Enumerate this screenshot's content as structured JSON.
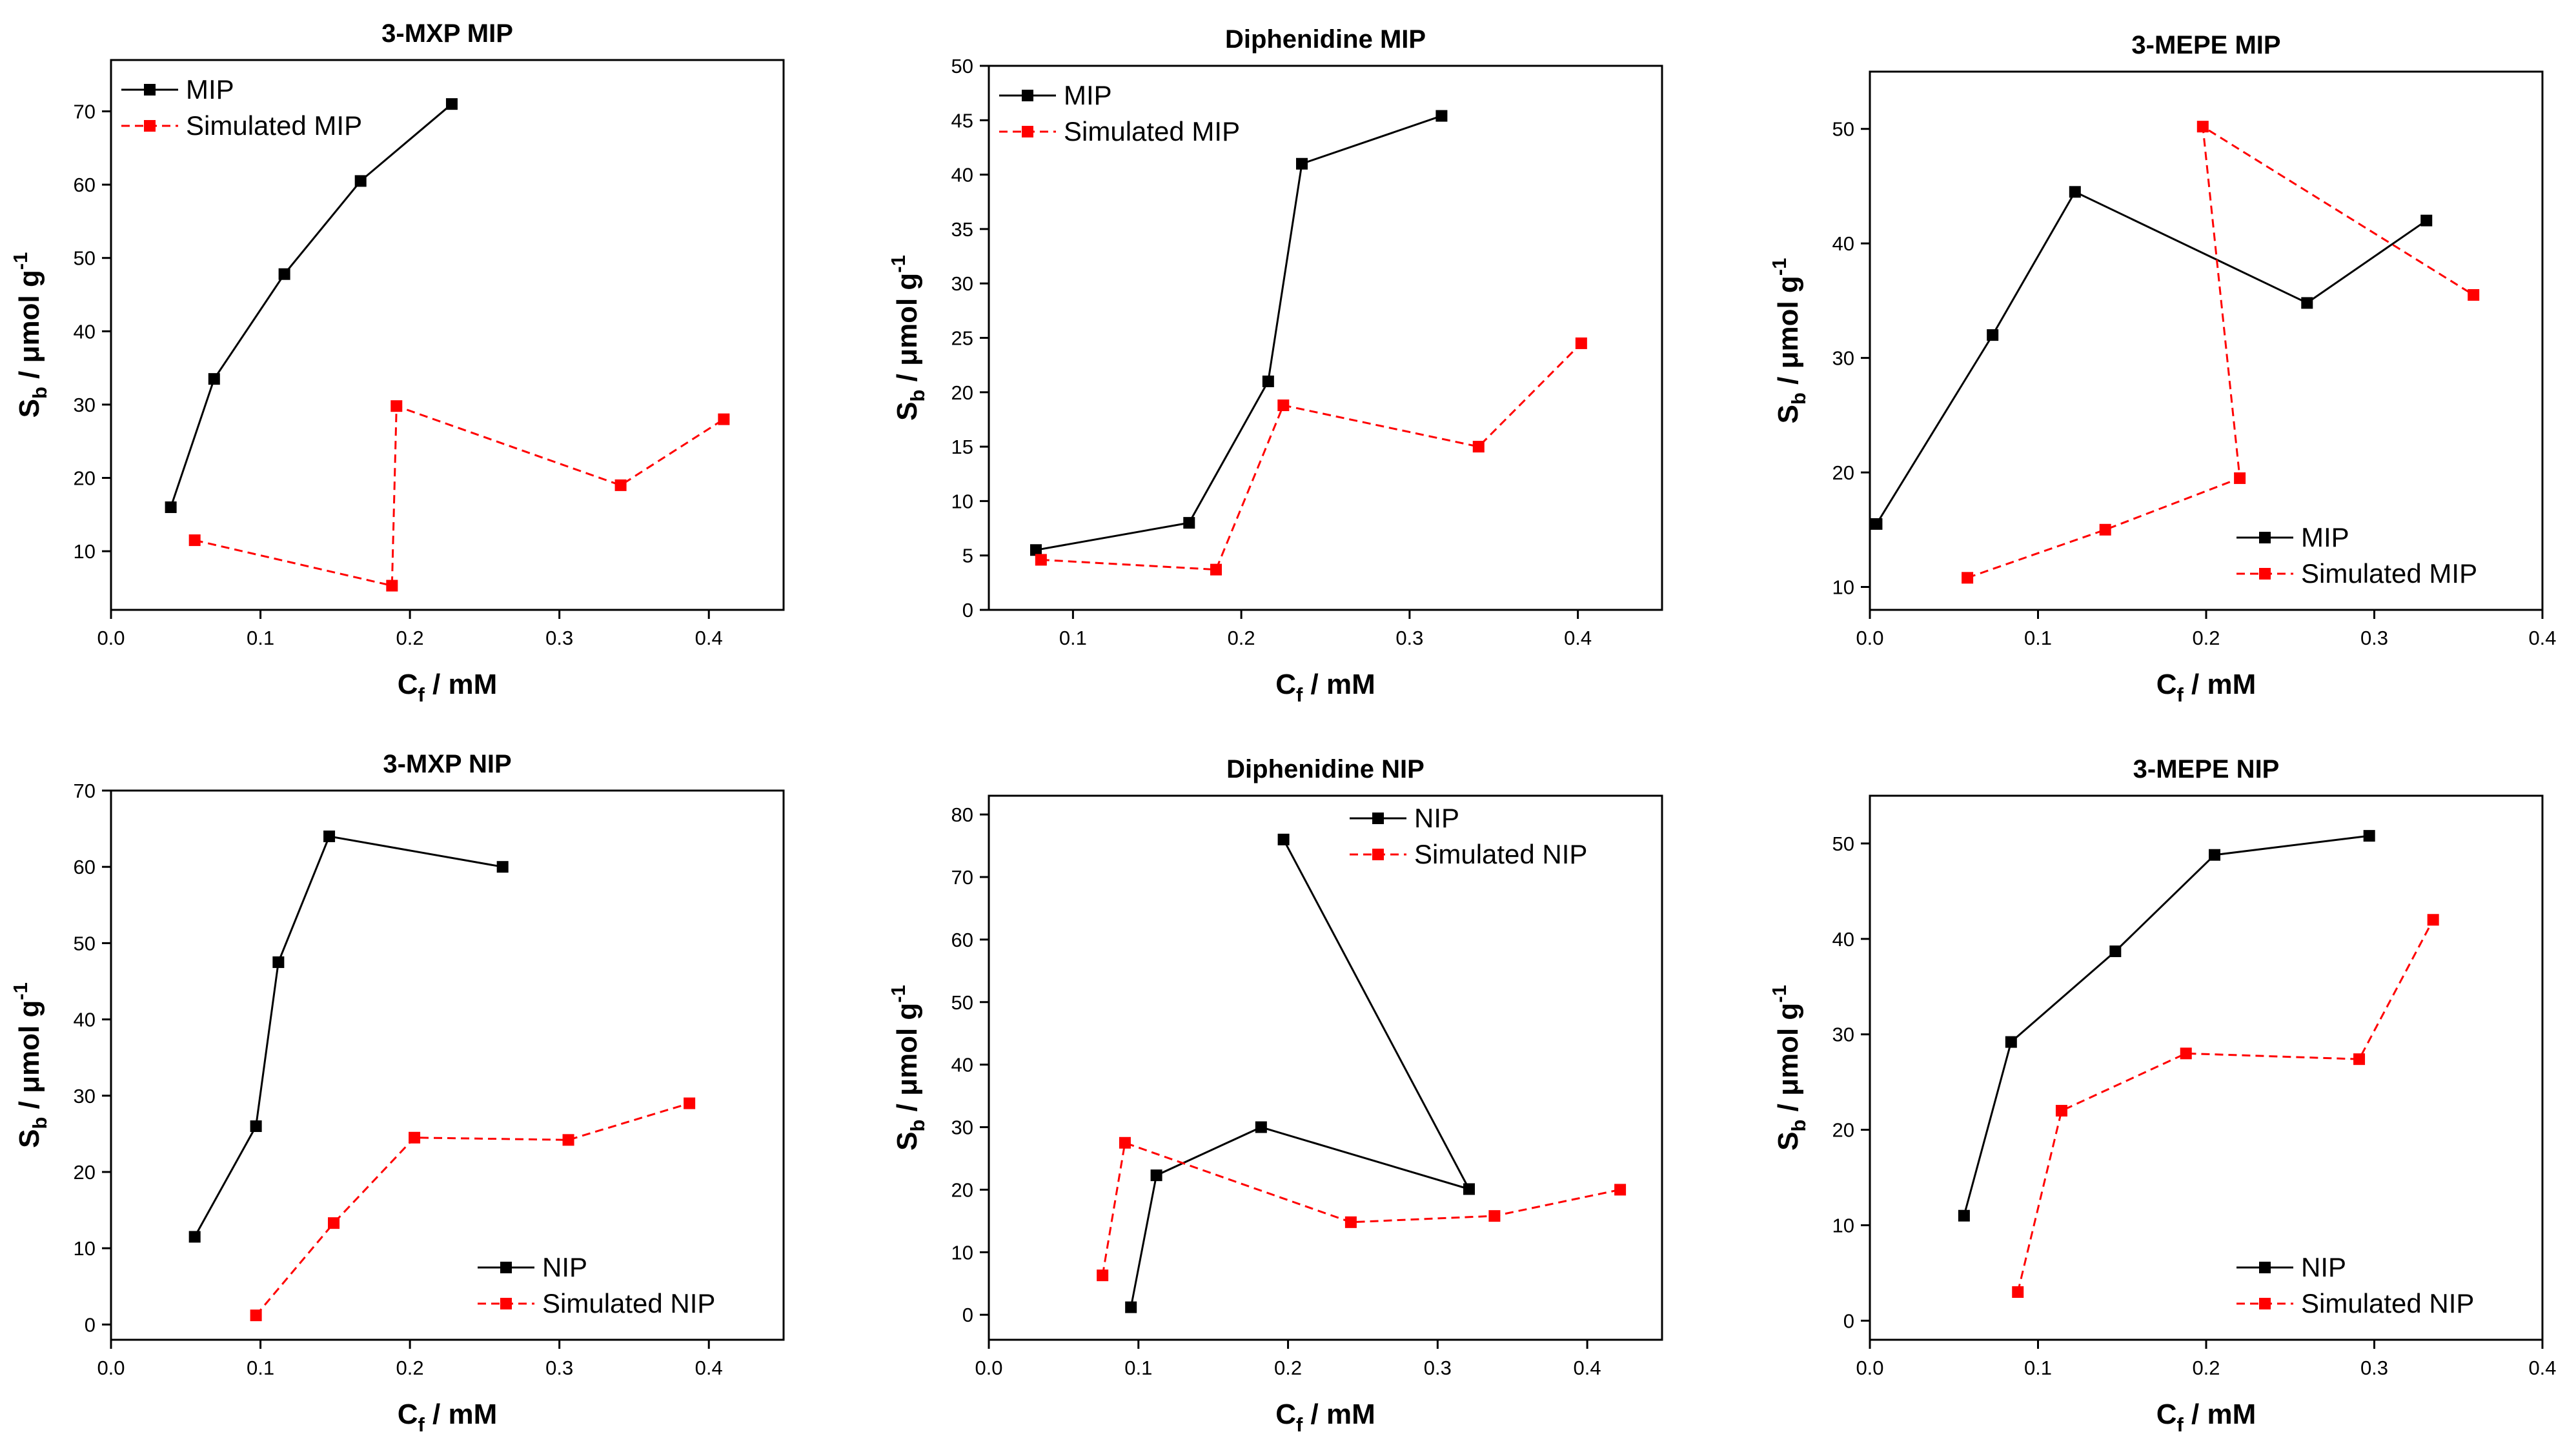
{
  "figure": {
    "background": "#ffffff",
    "axis_color": "#000000"
  },
  "chart_data": [
    {
      "type": "line",
      "title": "3-MXP MIP",
      "xlabel": {
        "main": "C",
        "sub": "f",
        "rest": " / mM"
      },
      "ylabel": {
        "main": "S",
        "sub": "b",
        "rest": " / μmol g",
        "sup": "-1"
      },
      "xlim": [
        0.0,
        0.45
      ],
      "ylim": [
        2,
        77
      ],
      "xticks": [
        0.0,
        0.1,
        0.2,
        0.3,
        0.4
      ],
      "xtick_labels": [
        "0.0",
        "0.1",
        "0.2",
        "0.3",
        "0.4"
      ],
      "yticks": [
        10,
        20,
        30,
        40,
        50,
        60,
        70
      ],
      "ytick_labels": [
        "10",
        "20",
        "30",
        "40",
        "50",
        "60",
        "70"
      ],
      "legend": {
        "position": "top-left"
      },
      "series": [
        {
          "name": "MIP",
          "color": "#000000",
          "dashed": false,
          "x": [
            0.04,
            0.069,
            0.116,
            0.167,
            0.228
          ],
          "y": [
            16.0,
            33.5,
            47.8,
            60.5,
            71.0
          ]
        },
        {
          "name": "Simulated MIP",
          "color": "#ff0000",
          "dashed": true,
          "x": [
            0.056,
            0.188,
            0.191,
            0.341,
            0.41
          ],
          "y": [
            11.5,
            5.3,
            29.8,
            19.0,
            28.0
          ]
        }
      ]
    },
    {
      "type": "line",
      "title": "Diphenidine MIP",
      "xlabel": {
        "main": "C",
        "sub": "f",
        "rest": " / mM"
      },
      "ylabel": {
        "main": "S",
        "sub": "b",
        "rest": " / μmol g",
        "sup": "-1"
      },
      "xlim": [
        0.05,
        0.45
      ],
      "ylim": [
        0,
        50
      ],
      "xticks": [
        0.1,
        0.2,
        0.3,
        0.4
      ],
      "xtick_labels": [
        "0.1",
        "0.2",
        "0.3",
        "0.4"
      ],
      "yticks": [
        0,
        5,
        10,
        15,
        20,
        25,
        30,
        35,
        40,
        45,
        50
      ],
      "ytick_labels": [
        "0",
        "5",
        "10",
        "15",
        "20",
        "25",
        "30",
        "35",
        "40",
        "45",
        "50"
      ],
      "legend": {
        "position": "top-left"
      },
      "series": [
        {
          "name": "MIP",
          "color": "#000000",
          "dashed": false,
          "x": [
            0.078,
            0.169,
            0.216,
            0.236,
            0.319
          ],
          "y": [
            5.5,
            8.0,
            21.0,
            41.0,
            45.4
          ]
        },
        {
          "name": "Simulated MIP",
          "color": "#ff0000",
          "dashed": true,
          "x": [
            0.081,
            0.185,
            0.225,
            0.341,
            0.402
          ],
          "y": [
            4.6,
            3.7,
            18.8,
            15.0,
            24.5
          ]
        }
      ]
    },
    {
      "type": "line",
      "title": "3-MEPE MIP",
      "xlabel": {
        "main": "C",
        "sub": "f",
        "rest": " / mM"
      },
      "ylabel": {
        "main": "S",
        "sub": "b",
        "rest": " / μmol g",
        "sup": "-1"
      },
      "xlim": [
        0.0,
        0.4
      ],
      "ylim": [
        8,
        55
      ],
      "xticks": [
        0.0,
        0.1,
        0.2,
        0.3,
        0.4
      ],
      "xtick_labels": [
        "0.0",
        "0.1",
        "0.2",
        "0.3",
        "0.4"
      ],
      "yticks": [
        10,
        20,
        30,
        40,
        50
      ],
      "ytick_labels": [
        "10",
        "20",
        "30",
        "40",
        "50"
      ],
      "legend": {
        "position": "bottom-right"
      },
      "series": [
        {
          "name": "MIP",
          "color": "#000000",
          "dashed": false,
          "x": [
            0.004,
            0.073,
            0.122,
            0.26,
            0.331
          ],
          "y": [
            15.5,
            32.0,
            44.5,
            34.8,
            42.0
          ]
        },
        {
          "name": "Simulated MIP",
          "color": "#ff0000",
          "dashed": true,
          "x": [
            0.058,
            0.14,
            0.22,
            0.198,
            0.359
          ],
          "y": [
            10.8,
            15.0,
            19.5,
            50.2,
            35.5
          ]
        }
      ]
    },
    {
      "type": "line",
      "title": "3-MXP NIP",
      "xlabel": {
        "main": "C",
        "sub": "f",
        "rest": " / mM"
      },
      "ylabel": {
        "main": "S",
        "sub": "b",
        "rest": " / μmol g",
        "sup": "-1"
      },
      "xlim": [
        0.0,
        0.45
      ],
      "ylim": [
        -2,
        70
      ],
      "xticks": [
        0.0,
        0.1,
        0.2,
        0.3,
        0.4
      ],
      "xtick_labels": [
        "0.0",
        "0.1",
        "0.2",
        "0.3",
        "0.4"
      ],
      "yticks": [
        0,
        10,
        20,
        30,
        40,
        50,
        60,
        70
      ],
      "ytick_labels": [
        "0",
        "10",
        "20",
        "30",
        "40",
        "50",
        "60",
        "70"
      ],
      "legend": {
        "position": "bottom-right"
      },
      "series": [
        {
          "name": "NIP",
          "color": "#000000",
          "dashed": false,
          "x": [
            0.056,
            0.097,
            0.112,
            0.146,
            0.262
          ],
          "y": [
            11.5,
            26.0,
            47.5,
            64.0,
            60.0
          ]
        },
        {
          "name": "Simulated NIP",
          "color": "#ff0000",
          "dashed": true,
          "x": [
            0.097,
            0.149,
            0.203,
            0.306,
            0.387
          ],
          "y": [
            1.2,
            13.3,
            24.5,
            24.2,
            29.0
          ]
        }
      ]
    },
    {
      "type": "line",
      "title": "Diphenidine NIP",
      "xlabel": {
        "main": "C",
        "sub": "f",
        "rest": " / mM"
      },
      "ylabel": {
        "main": "S",
        "sub": "b",
        "rest": " / μmol g",
        "sup": "-1"
      },
      "xlim": [
        0.0,
        0.45
      ],
      "ylim": [
        -4,
        83
      ],
      "xticks": [
        0.0,
        0.1,
        0.2,
        0.3,
        0.4
      ],
      "xtick_labels": [
        "0.0",
        "0.1",
        "0.2",
        "0.3",
        "0.4"
      ],
      "yticks": [
        0,
        10,
        20,
        30,
        40,
        50,
        60,
        70,
        80
      ],
      "ytick_labels": [
        "0",
        "10",
        "20",
        "30",
        "40",
        "50",
        "60",
        "70",
        "80"
      ],
      "legend": {
        "position": "top-right"
      },
      "series": [
        {
          "name": "NIP",
          "color": "#000000",
          "dashed": false,
          "x": [
            0.095,
            0.112,
            0.182,
            0.321,
            0.197
          ],
          "y": [
            1.2,
            22.3,
            30.0,
            20.1,
            76.0
          ]
        },
        {
          "name": "Simulated NIP",
          "color": "#ff0000",
          "dashed": true,
          "x": [
            0.076,
            0.091,
            0.242,
            0.338,
            0.422
          ],
          "y": [
            6.3,
            27.5,
            14.8,
            15.8,
            20.0
          ]
        }
      ]
    },
    {
      "type": "line",
      "title": "3-MEPE NIP",
      "xlabel": {
        "main": "C",
        "sub": "f",
        "rest": " / mM"
      },
      "ylabel": {
        "main": "S",
        "sub": "b",
        "rest": " / μmol g",
        "sup": "-1"
      },
      "xlim": [
        0.0,
        0.4
      ],
      "ylim": [
        -2,
        55
      ],
      "xticks": [
        0.0,
        0.1,
        0.2,
        0.3,
        0.4
      ],
      "xtick_labels": [
        "0.0",
        "0.1",
        "0.2",
        "0.3",
        "0.4"
      ],
      "yticks": [
        0,
        10,
        20,
        30,
        40,
        50
      ],
      "ytick_labels": [
        "0",
        "10",
        "20",
        "30",
        "40",
        "50"
      ],
      "legend": {
        "position": "bottom-right"
      },
      "series": [
        {
          "name": "NIP",
          "color": "#000000",
          "dashed": false,
          "x": [
            0.056,
            0.084,
            0.146,
            0.205,
            0.297
          ],
          "y": [
            11.0,
            29.2,
            38.7,
            48.8,
            50.8
          ]
        },
        {
          "name": "Simulated NIP",
          "color": "#ff0000",
          "dashed": true,
          "x": [
            0.088,
            0.114,
            0.188,
            0.291,
            0.335
          ],
          "y": [
            3.0,
            22.0,
            28.0,
            27.4,
            42.0
          ]
        }
      ]
    }
  ]
}
